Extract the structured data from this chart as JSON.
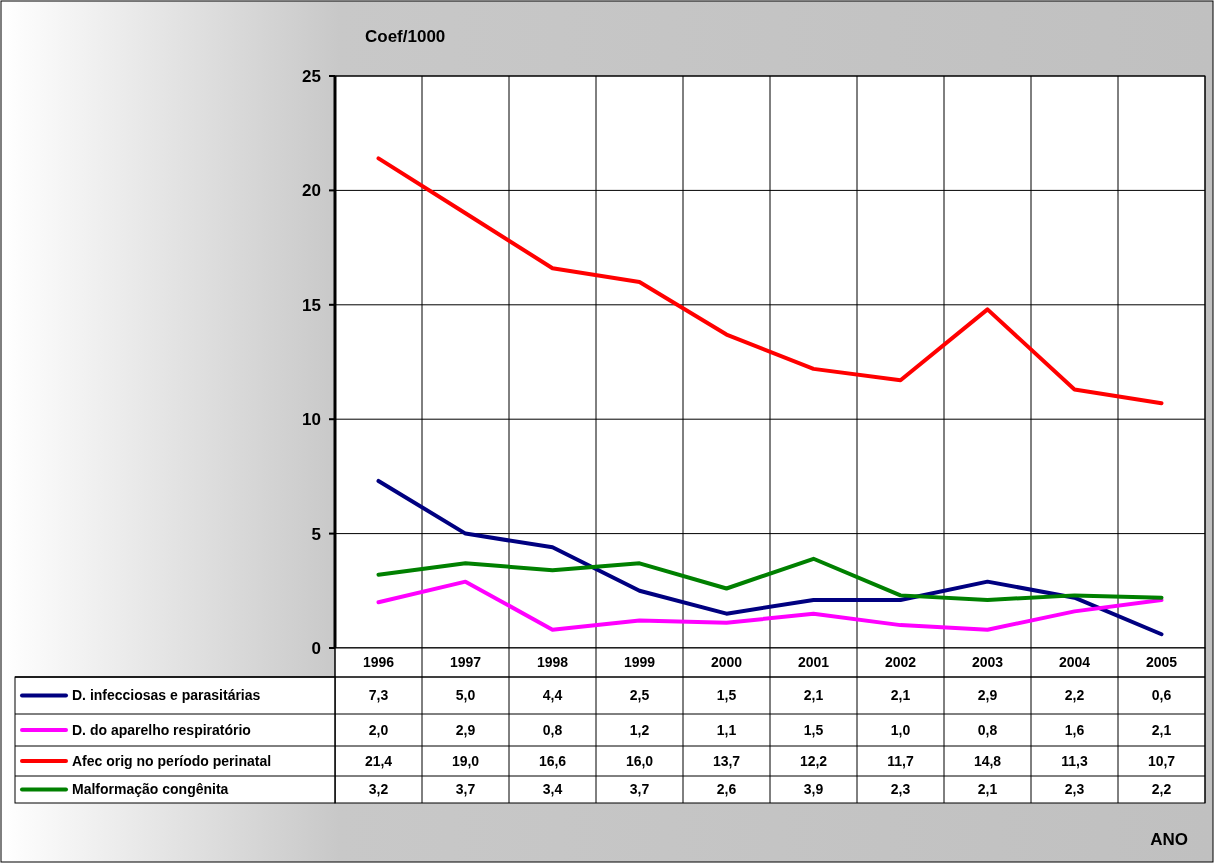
{
  "chart_data": {
    "type": "line",
    "ylabel": "Coef/1000",
    "annotations": [
      "ANO"
    ],
    "categories": [
      "1996",
      "1997",
      "1998",
      "1999",
      "2000",
      "2001",
      "2002",
      "2003",
      "2004",
      "2005"
    ],
    "ylim": [
      0,
      25
    ],
    "yticks": [
      0,
      5,
      10,
      15,
      20,
      25
    ],
    "grid": true,
    "legend": "bottom",
    "marker": "none",
    "line_style": "solid",
    "series": [
      {
        "name": "D. infecciosas e parasitárias",
        "color": "#000080",
        "values": [
          7.3,
          5.0,
          4.4,
          2.5,
          1.5,
          2.1,
          2.1,
          2.9,
          2.2,
          0.6
        ],
        "value_labels": [
          "7,3",
          "5,0",
          "4,4",
          "2,5",
          "1,5",
          "2,1",
          "2,1",
          "2,9",
          "2,2",
          "0,6"
        ]
      },
      {
        "name": "D. do aparelho respiratório",
        "color": "#ff00ff",
        "values": [
          2.0,
          2.9,
          0.8,
          1.2,
          1.1,
          1.5,
          1.0,
          0.8,
          1.6,
          2.1
        ],
        "value_labels": [
          "2,0",
          "2,9",
          "0,8",
          "1,2",
          "1,1",
          "1,5",
          "1,0",
          "0,8",
          "1,6",
          "2,1"
        ]
      },
      {
        "name": "Afec orig no período perinatal",
        "color": "#ff0000",
        "values": [
          21.4,
          19.0,
          16.6,
          16.0,
          13.7,
          12.2,
          11.7,
          14.8,
          11.3,
          10.7
        ],
        "value_labels": [
          "21,4",
          "19,0",
          "16,6",
          "16,0",
          "13,7",
          "12,2",
          "11,7",
          "14,8",
          "11,3",
          "10,7"
        ]
      },
      {
        "name": "Malformação congênita",
        "color": "#008000",
        "values": [
          3.2,
          3.7,
          3.4,
          3.7,
          2.6,
          3.9,
          2.3,
          2.1,
          2.3,
          2.2
        ],
        "value_labels": [
          "3,2",
          "3,7",
          "3,4",
          "3,7",
          "2,6",
          "3,9",
          "2,3",
          "2,1",
          "2,3",
          "2,2"
        ]
      }
    ]
  }
}
